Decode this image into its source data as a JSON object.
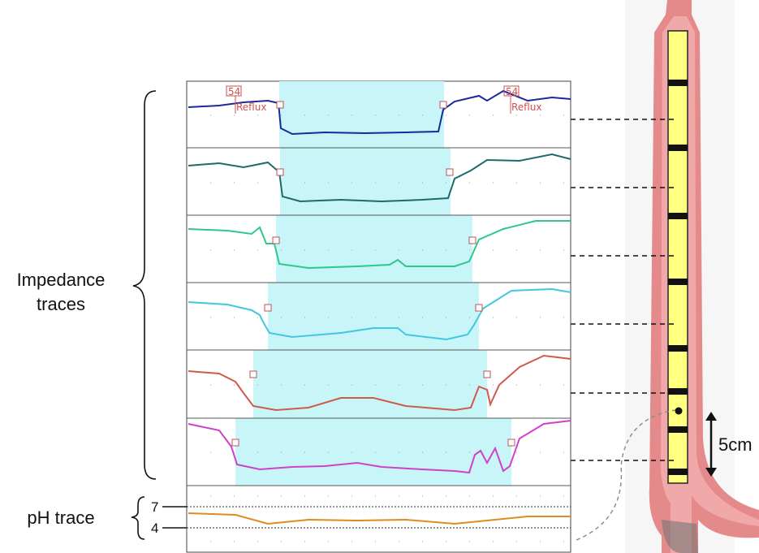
{
  "annotations": [
    {
      "marker": "54",
      "label": "Reflux"
    },
    {
      "marker": "54",
      "label": "Reflux"
    }
  ],
  "labels": {
    "impedance": [
      "Impedance",
      "traces"
    ],
    "ph": "pH trace",
    "ph_ticks": [
      "7",
      "4"
    ],
    "scale": "5cm"
  }
}
